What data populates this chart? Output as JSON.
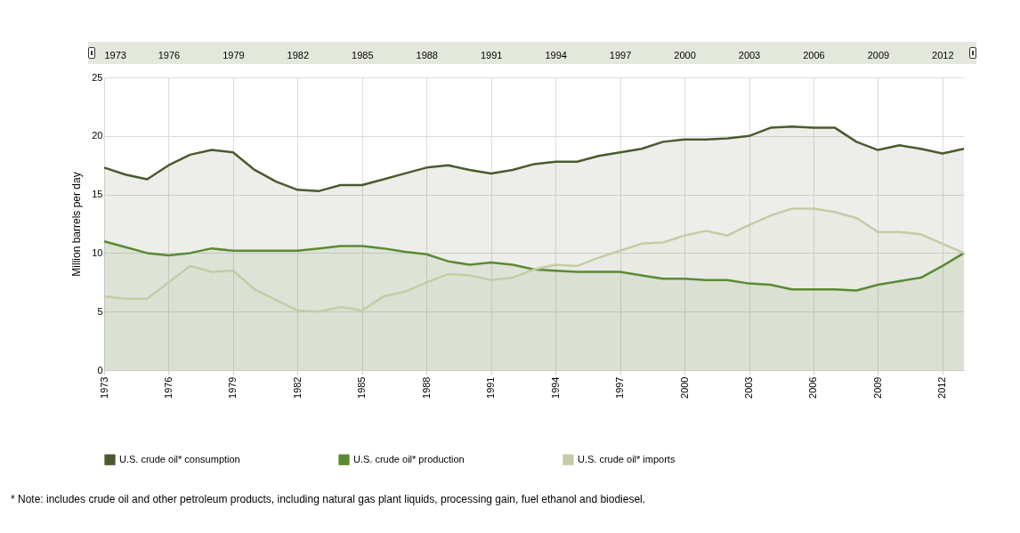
{
  "chart_data": {
    "type": "area",
    "ylabel": "Million barrels per day",
    "x": [
      1973,
      1974,
      1975,
      1976,
      1977,
      1978,
      1979,
      1980,
      1981,
      1982,
      1983,
      1984,
      1985,
      1986,
      1987,
      1988,
      1989,
      1990,
      1991,
      1992,
      1993,
      1994,
      1995,
      1996,
      1997,
      1998,
      1999,
      2000,
      2001,
      2002,
      2003,
      2004,
      2005,
      2006,
      2007,
      2008,
      2009,
      2010,
      2011,
      2012,
      2013
    ],
    "series": [
      {
        "name": "U.S. crude oil* consumption",
        "color": "#4a5a2e",
        "values": [
          17.3,
          16.7,
          16.3,
          17.5,
          18.4,
          18.8,
          18.6,
          17.1,
          16.1,
          15.4,
          15.3,
          15.8,
          15.8,
          16.3,
          16.8,
          17.3,
          17.5,
          17.1,
          16.8,
          17.1,
          17.6,
          17.8,
          17.8,
          18.3,
          18.6,
          18.9,
          19.5,
          19.7,
          19.7,
          19.8,
          20.0,
          20.7,
          20.8,
          20.7,
          20.7,
          19.5,
          18.8,
          19.2,
          18.9,
          18.5,
          18.9
        ]
      },
      {
        "name": "U.S. crude oil* production",
        "color": "#5b8a32",
        "values": [
          11.0,
          10.5,
          10.0,
          9.8,
          10.0,
          10.4,
          10.2,
          10.2,
          10.2,
          10.2,
          10.4,
          10.6,
          10.6,
          10.4,
          10.1,
          9.9,
          9.3,
          9.0,
          9.2,
          9.0,
          8.6,
          8.5,
          8.4,
          8.4,
          8.4,
          8.1,
          7.8,
          7.8,
          7.7,
          7.7,
          7.4,
          7.3,
          6.9,
          6.9,
          6.9,
          6.8,
          7.3,
          7.6,
          7.9,
          8.9,
          10.0
        ]
      },
      {
        "name": "U.S. crude oil* imports",
        "color": "#c5cba6",
        "values": [
          6.3,
          6.1,
          6.1,
          7.5,
          8.9,
          8.4,
          8.5,
          6.9,
          6.0,
          5.1,
          5.0,
          5.4,
          5.1,
          6.3,
          6.7,
          7.5,
          8.2,
          8.1,
          7.7,
          7.9,
          8.6,
          9.0,
          8.9,
          9.6,
          10.2,
          10.8,
          10.9,
          11.5,
          11.9,
          11.5,
          12.4,
          13.2,
          13.8,
          13.8,
          13.5,
          13.0,
          11.8,
          11.8,
          11.6,
          10.8,
          10.0
        ]
      }
    ],
    "xlim": [
      1973,
      2013
    ],
    "xticks": [
      1973,
      1976,
      1979,
      1982,
      1985,
      1988,
      1991,
      1994,
      1997,
      2000,
      2003,
      2006,
      2009,
      2012
    ],
    "x2lim": [
      1973,
      2013
    ],
    "x2ticks": [
      1973,
      1976,
      1979,
      1982,
      1985,
      1988,
      1991,
      1994,
      1997,
      2000,
      2003,
      2006,
      2009,
      2012
    ],
    "ylim": [
      0,
      25
    ],
    "yticks": [
      0,
      5,
      10,
      15,
      20,
      25
    ],
    "grid": true,
    "legend": "bottom",
    "annotations": [
      "* Note: includes crude oil and other petroleum products, including natural gas plant liquids, processing gain, fuel ethanol and biodiesel."
    ]
  }
}
